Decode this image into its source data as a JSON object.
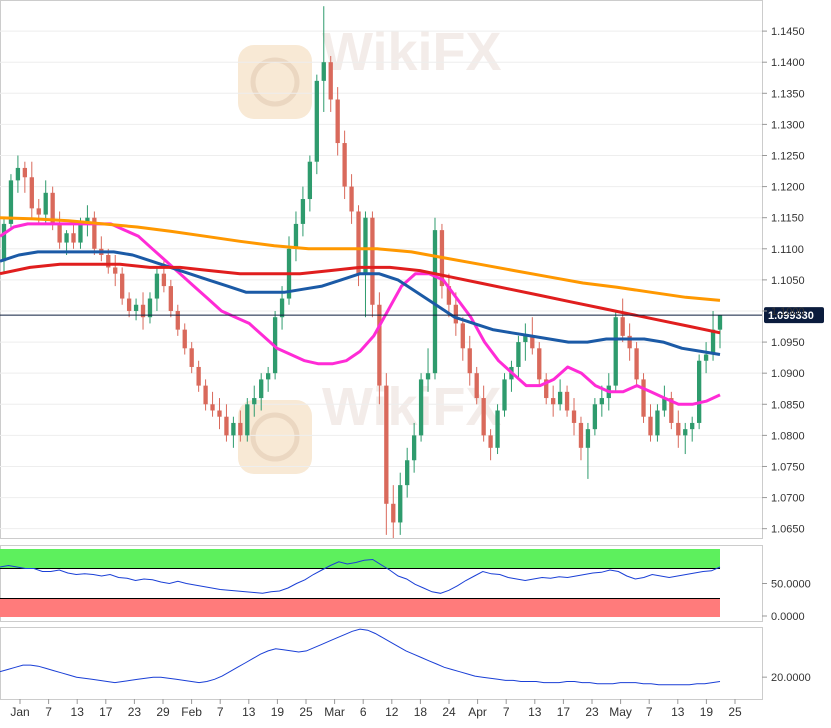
{
  "colors": {
    "up": "#2e9b6d",
    "down": "#d9695b",
    "ma_magenta": "#ff2bd6",
    "ma_blue": "#1b5aa6",
    "ma_red": "#e01e1e",
    "ma_orange": "#ff9800",
    "rsi_line": "#1a3fd6",
    "rsi_overbought": "#5df05d",
    "rsi_oversold": "#ff7b7b",
    "adx_line": "#1a3fd6",
    "price_tag_bg": "#0b1c3d",
    "grid": "#eeeeee",
    "watermark": "#e8c9a8"
  },
  "watermark": {
    "brand": "WikiFX"
  },
  "chart_data": [
    {
      "type": "candlestick",
      "y_ticks": [
        "1.1450",
        "1.1400",
        "1.1350",
        "1.1300",
        "1.1250",
        "1.1200",
        "1.1150",
        "1.1100",
        "1.1050",
        "1.1000",
        "1.0950",
        "1.0900",
        "1.0850",
        "1.0800",
        "1.0750",
        "1.0700",
        "1.0650"
      ],
      "ylim": [
        1.0635,
        1.15
      ],
      "last_price": "1.099330",
      "candles": [
        [
          1.108,
          1.115,
          1.106,
          1.114
        ],
        [
          1.114,
          1.122,
          1.113,
          1.121
        ],
        [
          1.121,
          1.125,
          1.119,
          1.123
        ],
        [
          1.123,
          1.124,
          1.119,
          1.1215
        ],
        [
          1.1215,
          1.124,
          1.115,
          1.1165
        ],
        [
          1.1165,
          1.118,
          1.114,
          1.1155
        ],
        [
          1.1155,
          1.121,
          1.114,
          1.119
        ],
        [
          1.119,
          1.12,
          1.113,
          1.114
        ],
        [
          1.114,
          1.116,
          1.11,
          1.111
        ],
        [
          1.111,
          1.113,
          1.109,
          1.1125
        ],
        [
          1.1125,
          1.114,
          1.11,
          1.111
        ],
        [
          1.111,
          1.115,
          1.11,
          1.114
        ],
        [
          1.114,
          1.117,
          1.112,
          1.115
        ],
        [
          1.115,
          1.116,
          1.109,
          1.11
        ],
        [
          1.11,
          1.112,
          1.108,
          1.109
        ],
        [
          1.109,
          1.11,
          1.106,
          1.107
        ],
        [
          1.107,
          1.109,
          1.104,
          1.106
        ],
        [
          1.106,
          1.107,
          1.101,
          1.102
        ],
        [
          1.102,
          1.103,
          1.099,
          1.1
        ],
        [
          1.1,
          1.102,
          1.0985,
          1.101
        ],
        [
          1.101,
          1.103,
          1.097,
          1.099
        ],
        [
          1.099,
          1.103,
          1.098,
          1.102
        ],
        [
          1.102,
          1.107,
          1.1,
          1.106
        ],
        [
          1.106,
          1.108,
          1.103,
          1.104
        ],
        [
          1.104,
          1.105,
          1.099,
          1.1
        ],
        [
          1.1,
          1.101,
          1.096,
          1.097
        ],
        [
          1.097,
          1.098,
          1.093,
          1.094
        ],
        [
          1.094,
          1.095,
          1.09,
          1.091
        ],
        [
          1.091,
          1.092,
          1.087,
          1.088
        ],
        [
          1.088,
          1.089,
          1.084,
          1.085
        ],
        [
          1.085,
          1.087,
          1.083,
          1.084
        ],
        [
          1.084,
          1.086,
          1.081,
          1.083
        ],
        [
          1.083,
          1.085,
          1.079,
          1.08
        ],
        [
          1.08,
          1.083,
          1.078,
          1.082
        ],
        [
          1.082,
          1.084,
          1.079,
          1.08
        ],
        [
          1.08,
          1.086,
          1.079,
          1.085
        ],
        [
          1.085,
          1.088,
          1.083,
          1.086
        ],
        [
          1.086,
          1.09,
          1.084,
          1.089
        ],
        [
          1.089,
          1.091,
          1.087,
          1.09
        ],
        [
          1.09,
          1.1,
          1.089,
          1.099
        ],
        [
          1.099,
          1.104,
          1.097,
          1.102
        ],
        [
          1.102,
          1.112,
          1.101,
          1.11
        ],
        [
          1.11,
          1.116,
          1.108,
          1.114
        ],
        [
          1.114,
          1.12,
          1.112,
          1.118
        ],
        [
          1.118,
          1.125,
          1.116,
          1.124
        ],
        [
          1.124,
          1.138,
          1.122,
          1.137
        ],
        [
          1.137,
          1.149,
          1.132,
          1.14
        ],
        [
          1.14,
          1.141,
          1.132,
          1.134
        ],
        [
          1.134,
          1.136,
          1.125,
          1.127
        ],
        [
          1.127,
          1.129,
          1.118,
          1.12
        ],
        [
          1.12,
          1.122,
          1.114,
          1.116
        ],
        [
          1.116,
          1.117,
          1.104,
          1.106
        ],
        [
          1.106,
          1.116,
          1.099,
          1.115
        ],
        [
          1.115,
          1.116,
          1.099,
          1.101
        ],
        [
          1.101,
          1.103,
          1.085,
          1.088
        ],
        [
          1.088,
          1.09,
          1.064,
          1.069
        ],
        [
          1.069,
          1.072,
          1.0635,
          1.066
        ],
        [
          1.066,
          1.074,
          1.064,
          1.072
        ],
        [
          1.072,
          1.078,
          1.07,
          1.076
        ],
        [
          1.076,
          1.082,
          1.074,
          1.08
        ],
        [
          1.08,
          1.09,
          1.079,
          1.089
        ],
        [
          1.089,
          1.094,
          1.087,
          1.09
        ],
        [
          1.09,
          1.115,
          1.089,
          1.113
        ],
        [
          1.113,
          1.114,
          1.102,
          1.104
        ],
        [
          1.104,
          1.106,
          1.099,
          1.101
        ],
        [
          1.101,
          1.103,
          1.096,
          1.098
        ],
        [
          1.098,
          1.099,
          1.092,
          1.094
        ],
        [
          1.094,
          1.096,
          1.088,
          1.09
        ],
        [
          1.09,
          1.091,
          1.085,
          1.086
        ],
        [
          1.086,
          1.088,
          1.079,
          1.08
        ],
        [
          1.08,
          1.081,
          1.076,
          1.078
        ],
        [
          1.078,
          1.085,
          1.077,
          1.084
        ],
        [
          1.084,
          1.09,
          1.083,
          1.089
        ],
        [
          1.089,
          1.092,
          1.087,
          1.091
        ],
        [
          1.091,
          1.096,
          1.089,
          1.095
        ],
        [
          1.095,
          1.098,
          1.092,
          1.096
        ],
        [
          1.096,
          1.099,
          1.093,
          1.094
        ],
        [
          1.094,
          1.095,
          1.088,
          1.089
        ],
        [
          1.089,
          1.09,
          1.085,
          1.086
        ],
        [
          1.086,
          1.088,
          1.083,
          1.085
        ],
        [
          1.085,
          1.089,
          1.084,
          1.087
        ],
        [
          1.087,
          1.088,
          1.083,
          1.084
        ],
        [
          1.084,
          1.086,
          1.08,
          1.082
        ],
        [
          1.082,
          1.083,
          1.076,
          1.078
        ],
        [
          1.078,
          1.082,
          1.073,
          1.081
        ],
        [
          1.081,
          1.086,
          1.08,
          1.085
        ],
        [
          1.085,
          1.088,
          1.083,
          1.086
        ],
        [
          1.086,
          1.09,
          1.084,
          1.088
        ],
        [
          1.088,
          1.1,
          1.087,
          1.099
        ],
        [
          1.099,
          1.102,
          1.095,
          1.096
        ],
        [
          1.096,
          1.098,
          1.092,
          1.094
        ],
        [
          1.094,
          1.095,
          1.088,
          1.089
        ],
        [
          1.089,
          1.09,
          1.082,
          1.083
        ],
        [
          1.083,
          1.085,
          1.079,
          1.08
        ],
        [
          1.08,
          1.085,
          1.079,
          1.084
        ],
        [
          1.084,
          1.088,
          1.083,
          1.086
        ],
        [
          1.086,
          1.087,
          1.081,
          1.082
        ],
        [
          1.082,
          1.084,
          1.078,
          1.08
        ],
        [
          1.08,
          1.082,
          1.077,
          1.081
        ],
        [
          1.081,
          1.083,
          1.079,
          1.082
        ],
        [
          1.082,
          1.093,
          1.081,
          1.092
        ],
        [
          1.092,
          1.095,
          1.09,
          1.093
        ],
        [
          1.093,
          1.1,
          1.092,
          1.097
        ],
        [
          1.097,
          1.099,
          1.094,
          1.0993
        ]
      ],
      "moving_averages": [
        {
          "color": "ma_magenta",
          "values": [
            1.112,
            1.1135,
            1.114,
            1.114,
            1.114,
            1.114,
            1.114,
            1.114,
            1.114,
            1.113,
            1.112,
            1.11,
            1.108,
            1.106,
            1.104,
            1.102,
            1.1,
            1.099,
            1.098,
            1.096,
            1.094,
            1.093,
            1.092,
            1.0915,
            1.0915,
            1.092,
            1.0935,
            1.096,
            1.1,
            1.104,
            1.106,
            1.106,
            1.105,
            1.102,
            1.099,
            1.095,
            1.092,
            1.09,
            1.088,
            1.088,
            1.089,
            1.091,
            1.09,
            1.088,
            1.087,
            1.087,
            1.088,
            1.087,
            1.086,
            1.085,
            1.085,
            1.0855,
            1.0865
          ]
        },
        {
          "color": "ma_blue",
          "values": [
            1.108,
            1.109,
            1.1095,
            1.1095,
            1.1095,
            1.1095,
            1.1095,
            1.109,
            1.108,
            1.107,
            1.106,
            1.105,
            1.104,
            1.103,
            1.103,
            1.103,
            1.1035,
            1.104,
            1.105,
            1.106,
            1.106,
            1.105,
            1.103,
            1.101,
            1.099,
            1.098,
            1.097,
            1.0965,
            1.096,
            1.0955,
            1.095,
            1.095,
            1.0955,
            1.0955,
            1.0955,
            1.095,
            1.094,
            1.0935,
            1.093
          ]
        },
        {
          "color": "ma_red",
          "values": [
            1.106,
            1.107,
            1.1075,
            1.1075,
            1.1075,
            1.107,
            1.107,
            1.1065,
            1.106,
            1.106,
            1.106,
            1.1065,
            1.107,
            1.107,
            1.1065,
            1.1055,
            1.1045,
            1.1035,
            1.1025,
            1.1015,
            1.1005,
            1.0995,
            1.0985,
            1.0975,
            1.0965
          ]
        },
        {
          "color": "ma_orange",
          "values": [
            1.115,
            1.1148,
            1.1145,
            1.114,
            1.1135,
            1.1128,
            1.112,
            1.1112,
            1.1105,
            1.11,
            1.11,
            1.11,
            1.1095,
            1.1085,
            1.1075,
            1.1065,
            1.1055,
            1.1045,
            1.1038,
            1.103,
            1.1022,
            1.1017
          ]
        }
      ]
    },
    {
      "type": "line",
      "name": "rsi",
      "y_ticks": [
        "50.0000",
        "0.0000"
      ],
      "ylim": [
        0,
        100
      ],
      "overbought": 70,
      "oversold": 30,
      "values": [
        72,
        74,
        72,
        70,
        70,
        66,
        66,
        68,
        64,
        62,
        63,
        62,
        60,
        62,
        58,
        57,
        54,
        56,
        55,
        52,
        50,
        53,
        50,
        48,
        46,
        44,
        42,
        41,
        40,
        39,
        38,
        37,
        39,
        40,
        44,
        50,
        55,
        62,
        68,
        74,
        79,
        76,
        78,
        81,
        82,
        75,
        68,
        60,
        56,
        49,
        44,
        39,
        37,
        41,
        47,
        54,
        60,
        66,
        63,
        62,
        58,
        56,
        54,
        56,
        58,
        57,
        59,
        58,
        60,
        62,
        64,
        65,
        68,
        66,
        60,
        56,
        58,
        62,
        60,
        58,
        60,
        62,
        64,
        66,
        67,
        72
      ]
    },
    {
      "type": "line",
      "name": "adx",
      "y_ticks": [
        "20.0000"
      ],
      "ylim": [
        0,
        65
      ],
      "values": [
        25,
        27,
        29,
        31,
        31,
        30,
        28,
        26,
        24,
        22,
        20,
        19,
        18,
        17,
        16,
        15,
        16,
        17,
        18,
        19,
        20,
        20,
        19,
        18,
        17,
        16,
        15,
        16,
        18,
        21,
        25,
        29,
        33,
        37,
        41,
        44,
        46,
        45,
        44,
        43,
        44,
        47,
        50,
        53,
        56,
        59,
        62,
        64,
        63,
        60,
        56,
        52,
        48,
        44,
        41,
        38,
        35,
        32,
        29,
        27,
        25,
        23,
        21,
        20,
        19,
        18,
        17,
        17,
        16,
        16,
        16,
        15,
        15,
        15,
        16,
        16,
        15,
        15,
        14,
        14,
        14,
        15,
        15,
        15,
        14,
        14,
        13,
        13,
        13,
        13,
        13,
        14,
        14,
        15,
        16
      ]
    }
  ],
  "x_axis": {
    "labels": [
      "Jan",
      "7",
      "13",
      "17",
      "23",
      "29",
      "Feb",
      "7",
      "13",
      "19",
      "25",
      "Mar",
      "6",
      "12",
      "18",
      "24",
      "Apr",
      "7",
      "13",
      "17",
      "23",
      "May",
      "7",
      "13",
      "19",
      "25"
    ]
  }
}
